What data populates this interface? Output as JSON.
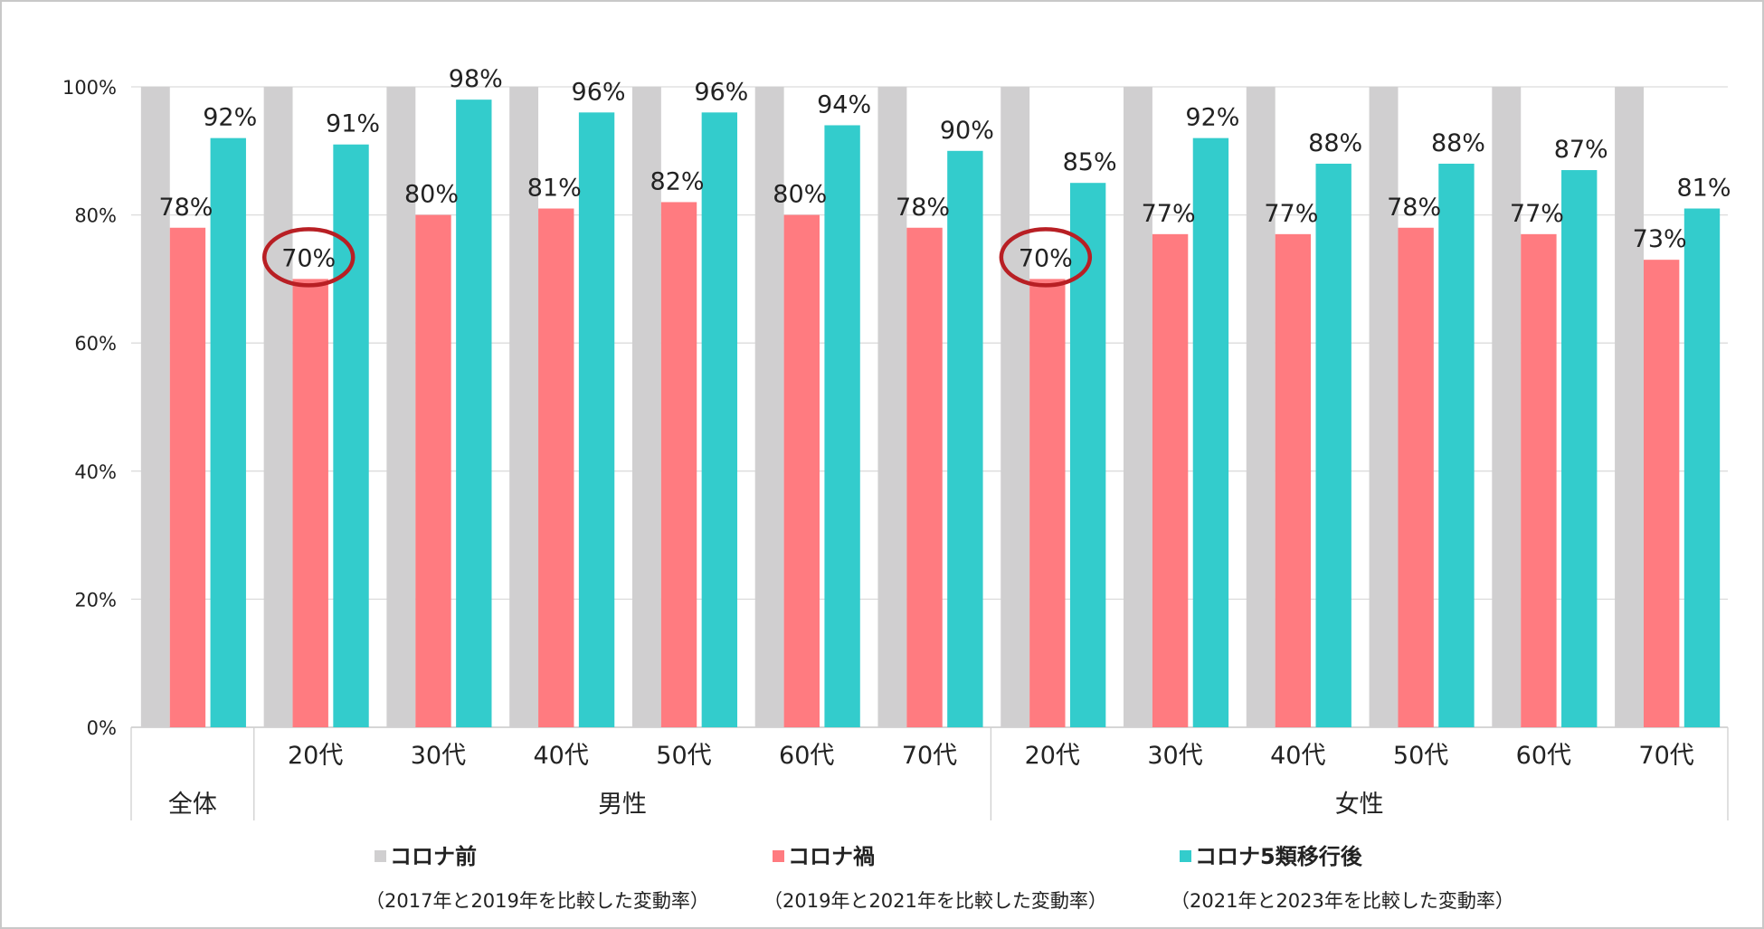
{
  "chart_data": {
    "type": "bar",
    "ylim": [
      0,
      100
    ],
    "yticks": [
      "0%",
      "20%",
      "40%",
      "60%",
      "80%",
      "100%"
    ],
    "categories": [
      "",
      "20代",
      "30代",
      "40代",
      "50代",
      "60代",
      "70代",
      "20代",
      "30代",
      "40代",
      "50代",
      "60代",
      "70代"
    ],
    "groups": [
      {
        "label": "全体",
        "start": 0,
        "end": 0
      },
      {
        "label": "男性",
        "start": 1,
        "end": 6
      },
      {
        "label": "女性",
        "start": 7,
        "end": 12
      }
    ],
    "series": [
      {
        "name": "コロナ前",
        "color": "#d0cfd0",
        "values": [
          100,
          100,
          100,
          100,
          100,
          100,
          100,
          100,
          100,
          100,
          100,
          100,
          100
        ]
      },
      {
        "name": "コロナ禍",
        "color": "#ff7b80",
        "values": [
          78,
          70,
          80,
          81,
          82,
          80,
          78,
          70,
          77,
          77,
          78,
          77,
          73
        ],
        "labels": [
          "78%",
          "70%",
          "80%",
          "81%",
          "82%",
          "80%",
          "78%",
          "70%",
          "77%",
          "77%",
          "78%",
          "77%",
          "73%"
        ]
      },
      {
        "name": "コロナ5類移行後",
        "color": "#33cccc",
        "values": [
          92,
          91,
          98,
          96,
          96,
          94,
          90,
          85,
          92,
          88,
          88,
          87,
          81
        ],
        "labels": [
          "92%",
          "91%",
          "98%",
          "96%",
          "96%",
          "94%",
          "90%",
          "85%",
          "92%",
          "88%",
          "88%",
          "87%",
          "81%"
        ]
      }
    ],
    "highlight": {
      "series": 1,
      "indices": [
        1,
        7
      ],
      "color": "#b81f24"
    }
  },
  "legend": [
    {
      "name": "コロナ前",
      "note": "（2017年と2019年を比較した変動率）",
      "color": "#d0cfd0"
    },
    {
      "name": "コロナ禍",
      "note": "（2019年と2021年を比較した変動率）",
      "color": "#ff7b80"
    },
    {
      "name": "コロナ5類移行後",
      "note": "（2021年と2023年を比較した変動率）",
      "color": "#33cccc"
    }
  ]
}
